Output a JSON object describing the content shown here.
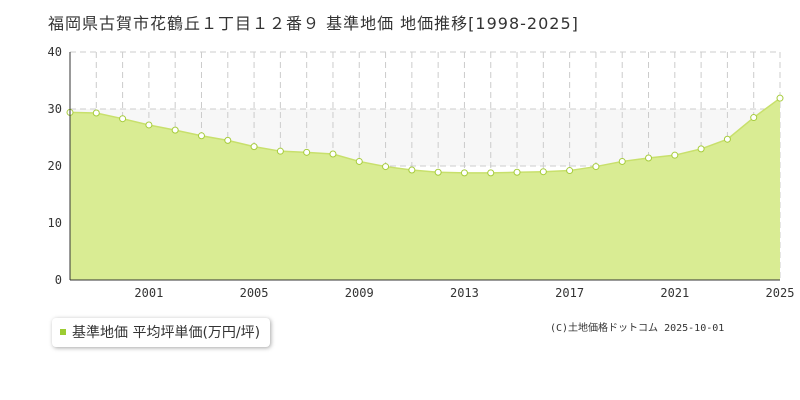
{
  "title": "福岡県古賀市花鶴丘１丁目１２番９ 基準地価 地価推移[1998-2025]",
  "legend": {
    "label": "基準地価 平均坪単価(万円/坪)",
    "color": "#9ccc32"
  },
  "copyright": "(C)土地価格ドットコム 2025-10-01",
  "chart_data": {
    "type": "area",
    "title": "福岡県古賀市花鶴丘１丁目１２番９ 基準地価 地価推移[1998-2025]",
    "x": [
      1998,
      1999,
      2000,
      2001,
      2002,
      2003,
      2004,
      2005,
      2006,
      2007,
      2008,
      2009,
      2010,
      2011,
      2012,
      2013,
      2014,
      2015,
      2016,
      2017,
      2018,
      2019,
      2020,
      2021,
      2022,
      2023,
      2024,
      2025
    ],
    "x_tick_labels": [
      "2001",
      "2005",
      "2009",
      "2013",
      "2017",
      "2021",
      "2025"
    ],
    "x_tick_values": [
      2001,
      2005,
      2009,
      2013,
      2017,
      2021,
      2025
    ],
    "series": [
      {
        "name": "基準地価 平均坪単価(万円/坪)",
        "values": [
          29.4,
          29.3,
          28.3,
          27.2,
          26.3,
          25.3,
          24.5,
          23.4,
          22.6,
          22.4,
          22.1,
          20.8,
          19.9,
          19.3,
          18.9,
          18.8,
          18.8,
          18.9,
          19.0,
          19.2,
          19.9,
          20.8,
          21.4,
          21.9,
          23.0,
          24.7,
          28.5,
          31.9
        ]
      }
    ],
    "ylim": [
      0,
      40
    ],
    "y_ticks": [
      0,
      10,
      20,
      30,
      40
    ],
    "grid": true,
    "legend_position": "bottom-left",
    "colors": {
      "line": "#c8e06c",
      "fill": "#d9ec93",
      "marker_fill": "#ffffff",
      "marker_stroke": "#a6cc3c",
      "band": "#f7f7f7",
      "grid": "#cccccc"
    }
  }
}
